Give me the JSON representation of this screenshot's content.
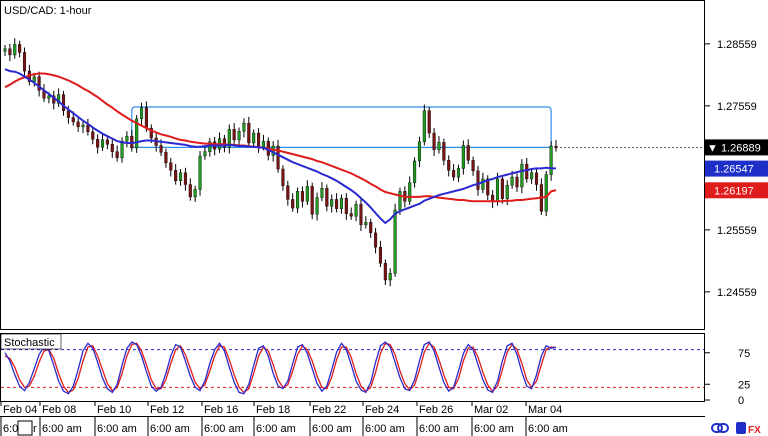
{
  "title": "USD/CAD: 1-hour",
  "indicator_label": "Stochastic",
  "colors": {
    "background": "#ffffff",
    "candle_up": "#1f9b1f",
    "candle_down": "#7a1414",
    "sma_fast": "#2a2ad0",
    "sma_slow": "#e01b1b",
    "box": "#2f8fe8",
    "stoch_k": "#2a2ad0",
    "stoch_d": "#e01b1b",
    "level_80": "#2a2ad0",
    "level_20": "#e01b1b",
    "price_badge_bg": "#000000",
    "blue_badge_bg": "#1e2fc8",
    "red_badge_bg": "#e01b1b"
  },
  "chart_data": {
    "type": "line",
    "price_axis": {
      "ticks": [
        1.24559,
        1.25559,
        1.26559,
        1.27559,
        1.28559
      ],
      "tick_labels": [
        "1.24559",
        "1.25559",
        "1.26559",
        "1.27559",
        "1.28559"
      ],
      "ylim": [
        1.2396,
        1.2925
      ]
    },
    "price_badges": [
      {
        "label": "▼ 1.26889",
        "value": 1.26889,
        "style": "current"
      },
      {
        "label": "1.26547",
        "value": 1.26547,
        "style": "blue"
      },
      {
        "label": "1.26197",
        "value": 1.26197,
        "style": "red"
      }
    ],
    "resistance_box": {
      "x_range": [
        26,
        112
      ],
      "y_range": [
        1.26889,
        1.2754
      ]
    },
    "close": [
      1.2848,
      1.2838,
      1.2855,
      1.2842,
      1.2812,
      1.2795,
      1.2803,
      1.2781,
      1.2768,
      1.2772,
      1.276,
      1.2774,
      1.2748,
      1.2737,
      1.273,
      1.2722,
      1.2725,
      1.2714,
      1.2702,
      1.2689,
      1.2701,
      1.2694,
      1.2682,
      1.2672,
      1.2699,
      1.2707,
      1.2688,
      1.2735,
      1.2753,
      1.272,
      1.2704,
      1.2692,
      1.2681,
      1.2664,
      1.2652,
      1.2635,
      1.2648,
      1.2629,
      1.2609,
      1.2621,
      1.2675,
      1.2682,
      1.2698,
      1.2686,
      1.2703,
      1.2689,
      1.2718,
      1.2701,
      1.2715,
      1.2728,
      1.2696,
      1.2712,
      1.269,
      1.2699,
      1.2676,
      1.2691,
      1.2654,
      1.2627,
      1.2605,
      1.2591,
      1.2618,
      1.2602,
      1.2626,
      1.2581,
      1.2608,
      1.2623,
      1.2594,
      1.2605,
      1.259,
      1.2607,
      1.2582,
      1.2578,
      1.2597,
      1.2564,
      1.2568,
      1.2551,
      1.2528,
      1.2502,
      1.2475,
      1.2486,
      1.2588,
      1.2618,
      1.2602,
      1.2632,
      1.2667,
      1.2698,
      1.2748,
      1.2712,
      1.2685,
      1.2697,
      1.2668,
      1.2652,
      1.2641,
      1.2655,
      1.2692,
      1.2668,
      1.2651,
      1.2621,
      1.2638,
      1.2612,
      1.2601,
      1.2638,
      1.2606,
      1.2628,
      1.2641,
      1.2625,
      1.2662,
      1.2638,
      1.2648,
      1.2629,
      1.2586,
      1.2645,
      1.2691,
      1.2688
    ],
    "sma_fast": [
      1.2815,
      1.2812,
      1.2811,
      1.2808,
      1.2803,
      1.2798,
      1.2793,
      1.2787,
      1.2781,
      1.2775,
      1.2769,
      1.2763,
      1.2756,
      1.275,
      1.2744,
      1.2738,
      1.2732,
      1.2727,
      1.2721,
      1.2716,
      1.2711,
      1.2707,
      1.2703,
      1.2699,
      1.2697,
      1.2696,
      1.2696,
      1.2697,
      1.2699,
      1.27,
      1.27,
      1.2699,
      1.2698,
      1.2697,
      1.2696,
      1.2695,
      1.2694,
      1.2693,
      1.2691,
      1.269,
      1.269,
      1.2691,
      1.2692,
      1.2692,
      1.2692,
      1.2692,
      1.2693,
      1.2692,
      1.2691,
      1.2691,
      1.269,
      1.269,
      1.2689,
      1.2688,
      1.2685,
      1.2681,
      1.2677,
      1.2673,
      1.2669,
      1.2665,
      1.2662,
      1.2659,
      1.2656,
      1.2653,
      1.265,
      1.2646,
      1.2643,
      1.2639,
      1.2635,
      1.263,
      1.2625,
      1.262,
      1.2614,
      1.2607,
      1.26,
      1.2592,
      1.2583,
      1.2574,
      1.2567,
      1.2573,
      1.2582,
      1.2586,
      1.2589,
      1.2592,
      1.2595,
      1.2598,
      1.2603,
      1.2606,
      1.2609,
      1.2612,
      1.2614,
      1.2616,
      1.2618,
      1.262,
      1.2622,
      1.2625,
      1.2628,
      1.263,
      1.2633,
      1.2636,
      1.2638,
      1.2641,
      1.2643,
      1.2645,
      1.2647,
      1.2649,
      1.2651,
      1.2652,
      1.2654,
      1.2655,
      1.2655,
      1.2656,
      1.2655,
      1.2655
    ],
    "sma_slow": [
      1.2786,
      1.279,
      1.2795,
      1.2799,
      1.2802,
      1.2805,
      1.2807,
      1.2808,
      1.2808,
      1.2807,
      1.2805,
      1.2803,
      1.28,
      1.2797,
      1.2793,
      1.2789,
      1.2784,
      1.278,
      1.2775,
      1.277,
      1.2764,
      1.2758,
      1.2753,
      1.2747,
      1.2742,
      1.2737,
      1.2732,
      1.2728,
      1.2724,
      1.272,
      1.2716,
      1.2713,
      1.271,
      1.2708,
      1.2706,
      1.2703,
      1.2701,
      1.27,
      1.2698,
      1.2697,
      1.2696,
      1.2695,
      1.2695,
      1.2694,
      1.2694,
      1.2694,
      1.2693,
      1.2693,
      1.2692,
      1.2692,
      1.2691,
      1.269,
      1.2689,
      1.2688,
      1.2687,
      1.2685,
      1.2684,
      1.2682,
      1.268,
      1.2678,
      1.2676,
      1.2674,
      1.2672,
      1.267,
      1.2667,
      1.2665,
      1.2662,
      1.2659,
      1.2656,
      1.2653,
      1.265,
      1.2647,
      1.2643,
      1.2639,
      1.2635,
      1.263,
      1.2626,
      1.2621,
      1.2617,
      1.2615,
      1.2613,
      1.2611,
      1.2609,
      1.2609,
      1.2609,
      1.2609,
      1.261,
      1.261,
      1.2609,
      1.2608,
      1.2607,
      1.2606,
      1.2605,
      1.2604,
      1.2604,
      1.2603,
      1.2602,
      1.2602,
      1.2602,
      1.2602,
      1.2602,
      1.2602,
      1.2602,
      1.2603,
      1.2603,
      1.2604,
      1.2604,
      1.2605,
      1.2606,
      1.2607,
      1.2608,
      1.2609,
      1.2618,
      1.262
    ],
    "stochastic": {
      "ylim": [
        0,
        100
      ],
      "levels": [
        80,
        20
      ],
      "tick_labels": [
        "75",
        "25",
        "0"
      ],
      "tick_values": [
        75,
        25,
        0
      ],
      "k": [
        75,
        62,
        40,
        22,
        15,
        28,
        50,
        72,
        85,
        78,
        55,
        30,
        14,
        10,
        22,
        48,
        78,
        90,
        82,
        60,
        35,
        18,
        12,
        25,
        55,
        82,
        92,
        88,
        70,
        45,
        22,
        14,
        20,
        42,
        70,
        88,
        84,
        62,
        38,
        20,
        15,
        30,
        58,
        80,
        90,
        78,
        52,
        28,
        12,
        10,
        25,
        55,
        82,
        86,
        70,
        42,
        22,
        18,
        30,
        58,
        84,
        88,
        74,
        50,
        26,
        14,
        22,
        48,
        76,
        90,
        80,
        56,
        30,
        16,
        12,
        28,
        60,
        86,
        92,
        84,
        60,
        35,
        18,
        15,
        32,
        62,
        88,
        92,
        78,
        52,
        28,
        14,
        20,
        46,
        74,
        88,
        80,
        56,
        32,
        16,
        12,
        30,
        62,
        86,
        90,
        72,
        44,
        22,
        18,
        40,
        70,
        86,
        82,
        84
      ],
      "d": [
        70,
        66,
        52,
        32,
        20,
        22,
        38,
        60,
        78,
        80,
        66,
        42,
        22,
        12,
        16,
        34,
        62,
        84,
        86,
        70,
        48,
        26,
        15,
        20,
        42,
        70,
        88,
        90,
        78,
        56,
        32,
        18,
        18,
        32,
        58,
        80,
        86,
        72,
        50,
        28,
        18,
        24,
        46,
        70,
        86,
        84,
        64,
        40,
        20,
        12,
        18,
        42,
        70,
        84,
        78,
        56,
        32,
        20,
        24,
        46,
        72,
        86,
        80,
        62,
        38,
        20,
        18,
        36,
        64,
        84,
        84,
        68,
        42,
        22,
        14,
        20,
        44,
        74,
        90,
        88,
        72,
        46,
        26,
        16,
        24,
        48,
        76,
        90,
        84,
        64,
        40,
        20,
        18,
        34,
        62,
        82,
        84,
        68,
        44,
        24,
        14,
        22,
        48,
        76,
        88,
        80,
        58,
        32,
        20,
        30,
        56,
        80,
        84,
        83
      ]
    },
    "x_date_labels": [
      "Feb 04",
      "Feb 08",
      "Feb 10",
      "Feb 12",
      "Feb 16",
      "Feb 18",
      "Feb 22",
      "Feb 24",
      "Feb 26",
      "Mar 02",
      "Mar 04"
    ],
    "x_time_labels": [
      "6:00",
      "6:00 am",
      "6:00 am",
      "6:00 am",
      "6:00 am",
      "6:00 am",
      "6:00 am",
      "6:00 am",
      "6:00 am",
      "6:00 am",
      "6:00 am"
    ]
  },
  "time_scroller": {
    "start_label": "6:00",
    "date_prefix": "r"
  }
}
